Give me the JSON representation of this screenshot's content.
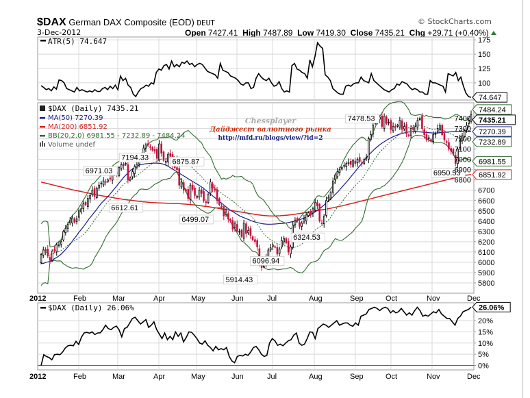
{
  "header": {
    "symbol": "$DAX",
    "name": "German DAX Composite (EOD)",
    "exchange": "DEUT",
    "date": "3-Dec-2012",
    "brand": "© StockCharts.com",
    "open_label": "Open",
    "open": "7427.41",
    "high_label": "High",
    "high": "7487.89",
    "low_label": "Low",
    "low": "7419.30",
    "close_label": "Close",
    "close": "7435.21",
    "chg_label": "Chg",
    "chg": "+29.71 (+0.40%)"
  },
  "watermark": {
    "line1": "Chessplayer",
    "line2": "Дайджест валютного рынка",
    "line3": "http://mfd.ru/blogs/view/?id=2"
  },
  "colors": {
    "ma50": "#1a1a8c",
    "ma200": "#d42020",
    "bb": "#2e6b2e",
    "down_candle": "#c8103c",
    "up_candle": "#000000",
    "grid": "#d8d8d8"
  },
  "chart_data": [
    {
      "type": "line",
      "title": "ATR(5) 74.647",
      "legend": "ATR(5) 74.647",
      "last_value_label": "74.647",
      "ylim": [
        70,
        180
      ],
      "yticks": [
        100,
        125,
        150,
        175
      ],
      "x_month_index": true,
      "series": [
        {
          "name": "ATR(5)",
          "values": [
            95,
            92,
            88,
            90,
            86,
            93,
            89,
            105,
            104,
            100,
            90,
            88,
            86,
            84,
            92,
            86,
            88,
            86,
            84,
            86,
            84,
            88,
            85,
            85,
            90,
            92,
            88,
            94,
            90,
            96,
            88,
            112,
            104,
            108,
            96,
            92,
            80,
            76,
            84,
            90,
            92,
            96,
            94,
            100,
            98,
            118,
            124,
            122,
            130,
            132,
            124,
            138,
            128,
            132,
            128,
            136,
            134,
            138,
            132,
            134,
            128,
            132,
            134,
            132,
            126,
            120,
            118,
            116,
            114,
            108,
            134,
            122,
            120,
            118,
            112,
            110,
            108,
            104,
            98,
            96,
            100,
            100,
            90,
            92,
            108,
            116,
            110,
            106,
            104,
            108,
            100,
            94,
            96,
            102,
            90,
            84,
            86,
            84,
            130,
            134,
            124,
            122,
            118,
            116,
            108,
            140,
            128,
            146,
            170,
            164,
            160,
            114,
            110,
            104,
            90,
            86,
            82,
            80,
            80,
            94,
            96,
            94,
            98,
            100,
            100,
            110,
            104,
            102,
            100,
            116,
            104,
            100,
            96,
            92,
            88,
            86,
            84,
            88,
            90,
            98,
            96,
            102,
            100,
            98,
            92,
            88,
            90,
            88,
            84,
            84,
            80,
            80,
            104,
            100,
            100,
            98,
            96,
            94,
            84,
            116,
            114,
            112,
            118,
            104,
            110,
            94,
            82,
            76,
            74.647
          ]
        }
      ]
    },
    {
      "type": "candlestick",
      "title": "$DAX (Daily) 7435.21",
      "legend": [
        {
          "label": "$DAX (Daily) 7435.21",
          "color": "#000000"
        },
        {
          "label": "MA(50) 7270.39",
          "color": "#1a1a8c"
        },
        {
          "label": "MA(200) 6851.92",
          "color": "#d42020"
        },
        {
          "label": "BB(20,2.0) 6981.55 - 7232.89 - 7484.24",
          "color": "#2e6b2e"
        },
        {
          "label": "Volume undef",
          "color": "#555555"
        }
      ],
      "ylim": [
        5700,
        7550
      ],
      "yticks": [
        5800,
        5900,
        6000,
        6100,
        6200,
        6300,
        6400,
        6500,
        6600,
        6700,
        6800,
        6900,
        7000,
        7100,
        7200,
        7300,
        7400
      ],
      "x_labels": [
        "2012",
        "Feb",
        "Mar",
        "Apr",
        "May",
        "Jun",
        "Jul",
        "Aug",
        "Sep",
        "Oct",
        "Nov",
        "Dec"
      ],
      "last_value_tags": [
        {
          "text": "7484.24",
          "value": 7484.24,
          "color": "#2e6b2e"
        },
        {
          "text": "7435.21",
          "value": 7435.21,
          "color": "#000000",
          "bold": true
        },
        {
          "text": "7270.39",
          "value": 7270.39,
          "color": "#1a1a8c"
        },
        {
          "text": "7232.89",
          "value": 7232.89,
          "color": "#2e6b2e"
        },
        {
          "text": "6981.55",
          "value": 6981.55,
          "color": "#2e6b2e"
        },
        {
          "text": "6851.92",
          "value": 6851.92,
          "color": "#d42020"
        }
      ],
      "annotations": [
        {
          "text": "6971.03",
          "month": 1.55,
          "value": 6971.03
        },
        {
          "text": "7194.33",
          "month": 2.45,
          "value": 7194.33
        },
        {
          "text": "6612.61",
          "month": 2.2,
          "value": 6612.61
        },
        {
          "text": "6875.87",
          "month": 3.75,
          "value": 6875.87
        },
        {
          "text": "6499.07",
          "month": 4.0,
          "value": 6499.07
        },
        {
          "text": "5914.43",
          "month": 5.1,
          "value": 5914.43
        },
        {
          "text": "6096.94",
          "month": 5.85,
          "value": 6096.94
        },
        {
          "text": "6324.53",
          "month": 6.85,
          "value": 6324.53
        },
        {
          "text": "7478.53",
          "month": 8.2,
          "value": 7478.53
        },
        {
          "text": "6950.53",
          "month": 10.4,
          "value": 6950.53
        }
      ],
      "close": [
        6075,
        6120,
        6110,
        6060,
        6020,
        6110,
        6120,
        6170,
        6170,
        6200,
        6300,
        6330,
        6370,
        6400,
        6430,
        6390,
        6420,
        6500,
        6520,
        6570,
        6560,
        6620,
        6650,
        6700,
        6640,
        6720,
        6750,
        6770,
        6790,
        6780,
        6800,
        6810,
        6880,
        6860,
        6860,
        6920,
        6950,
        6940,
        6960,
        6800,
        6820,
        6880,
        6930,
        6950,
        6980,
        7050,
        7110,
        7140,
        7140,
        7120,
        7090,
        7080,
        7010,
        7150,
        7060,
        6990,
        6980,
        7050,
        7030,
        6940,
        6920,
        6900,
        6750,
        6780,
        6700,
        6690,
        6620,
        6750,
        6710,
        6650,
        6640,
        6700,
        6670,
        6600,
        6580,
        6660,
        6780,
        6720,
        6700,
        6600,
        6560,
        6540,
        6450,
        6490,
        6420,
        6400,
        6320,
        6380,
        6300,
        6300,
        6250,
        6380,
        6280,
        6310,
        6260,
        6220,
        6200,
        6150,
        5980,
        5950,
        5960,
        6050,
        6120,
        6140,
        6170,
        6150,
        6080,
        6130,
        6210,
        6230,
        6190,
        6100,
        6150,
        6360,
        6410,
        6400,
        6350,
        6380,
        6420,
        6460,
        6480,
        6460,
        6520,
        6580,
        6550,
        6400,
        6380,
        6450,
        6600,
        6630,
        6680,
        6790,
        6850,
        6880,
        6900,
        6920,
        6940,
        6960,
        6970,
        6950,
        6990,
        6960,
        7000,
        6980,
        6960,
        7000,
        7020,
        7200,
        7240,
        7330,
        7380,
        7390,
        7410,
        7320,
        7420,
        7350,
        7360,
        7290,
        7320,
        7310,
        7330,
        7380,
        7290,
        7320,
        7250,
        7230,
        7300,
        7290,
        7320,
        7380,
        7400,
        7300,
        7240,
        7190,
        7210,
        7180,
        7240,
        7250,
        7300,
        7330,
        7240,
        7190,
        7170,
        7100,
        7080,
        7050,
        6960,
        7100,
        7200,
        7230,
        7280,
        7330,
        7380,
        7435.21
      ],
      "ma50": [
        5990,
        5990,
        6000,
        6005,
        6015,
        6030,
        6045,
        6060,
        6080,
        6105,
        6130,
        6160,
        6190,
        6225,
        6255,
        6290,
        6320,
        6350,
        6385,
        6420,
        6450,
        6480,
        6510,
        6545,
        6575,
        6600,
        6625,
        6650,
        6680,
        6710,
        6740,
        6770,
        6800,
        6830,
        6855,
        6880,
        6900,
        6915,
        6930,
        6945,
        6950,
        6955,
        6958,
        6960,
        6962,
        6963,
        6964,
        6962,
        6958,
        6950,
        6940,
        6925,
        6910,
        6895,
        6880,
        6865,
        6850,
        6835,
        6820,
        6805,
        6790,
        6775,
        6760,
        6745,
        6730,
        6710,
        6690,
        6670,
        6650,
        6630,
        6610,
        6590,
        6570,
        6550,
        6530,
        6510,
        6495,
        6480,
        6465,
        6450,
        6440,
        6430,
        6420,
        6410,
        6400,
        6392,
        6386,
        6380,
        6375,
        6372,
        6370,
        6370,
        6371,
        6372,
        6374,
        6376,
        6378,
        6380,
        6385,
        6390,
        6395,
        6400,
        6408,
        6415,
        6425,
        6435,
        6448,
        6460,
        6475,
        6490,
        6508,
        6525,
        6545,
        6568,
        6590,
        6612,
        6635,
        6660,
        6685,
        6712,
        6740,
        6768,
        6795,
        6825,
        6855,
        6885,
        6915,
        6945,
        6975,
        7005,
        7035,
        7060,
        7085,
        7108,
        7128,
        7148,
        7165,
        7180,
        7195,
        7208,
        7220,
        7230,
        7240,
        7248,
        7255,
        7260,
        7265,
        7268,
        7270,
        7270,
        7268,
        7266,
        7264,
        7262,
        7260,
        7258,
        7256,
        7256,
        7258,
        7260,
        7262,
        7264,
        7266,
        7268,
        7270,
        7270,
        7270,
        7270,
        7270,
        7270,
        7270,
        7270.39
      ],
      "ma200": [
        6780,
        6774,
        6768,
        6762,
        6756,
        6750,
        6744,
        6738,
        6732,
        6726,
        6720,
        6714,
        6708,
        6703,
        6698,
        6693,
        6688,
        6683,
        6678,
        6673,
        6668,
        6663,
        6658,
        6653,
        6648,
        6644,
        6640,
        6636,
        6632,
        6628,
        6624,
        6620,
        6616,
        6612,
        6609,
        6606,
        6603,
        6600,
        6597,
        6594,
        6591,
        6588,
        6586,
        6584,
        6582,
        6580,
        6579,
        6578,
        6577,
        6576,
        6575,
        6574,
        6573,
        6572,
        6571,
        6570,
        6569,
        6567,
        6565,
        6563,
        6561,
        6559,
        6556,
        6553,
        6550,
        6547,
        6544,
        6541,
        6538,
        6534,
        6530,
        6526,
        6522,
        6518,
        6514,
        6510,
        6506,
        6502,
        6498,
        6494,
        6490,
        6486,
        6482,
        6478,
        6474,
        6470,
        6466,
        6462,
        6459,
        6456,
        6454,
        6452,
        6450,
        6450,
        6450,
        6451,
        6452,
        6454,
        6456,
        6458,
        6460,
        6463,
        6466,
        6470,
        6474,
        6478,
        6482,
        6486,
        6490,
        6494,
        6498,
        6502,
        6506,
        6510,
        6514,
        6518,
        6523,
        6528,
        6533,
        6538,
        6543,
        6548,
        6554,
        6560,
        6566,
        6572,
        6578,
        6584,
        6590,
        6596,
        6602,
        6608,
        6614,
        6620,
        6626,
        6632,
        6638,
        6644,
        6650,
        6656,
        6662,
        6668,
        6674,
        6680,
        6686,
        6692,
        6698,
        6704,
        6710,
        6716,
        6722,
        6728,
        6734,
        6740,
        6746,
        6752,
        6758,
        6764,
        6770,
        6776,
        6782,
        6788,
        6794,
        6800,
        6806,
        6812,
        6818,
        6824,
        6830,
        6836,
        6842,
        6846,
        6849,
        6851.92
      ]
    },
    {
      "type": "line",
      "title": "$DAX (Daily) 26.06%",
      "legend": "$DAX (Daily) 26.06%",
      "last_value_label": "26.06%",
      "ylim": [
        -2,
        28
      ],
      "yticks": [
        0,
        5,
        10,
        15,
        20
      ],
      "ytick_labels": [
        "0%",
        "5%",
        "10%",
        "15%",
        "20%"
      ],
      "x_labels": [
        "2012",
        "Feb",
        "Mar",
        "Apr",
        "May",
        "Jun",
        "Jul",
        "Aug",
        "Sep",
        "Oct",
        "Nov",
        "Dec"
      ],
      "series": [
        {
          "name": "$DAX % change",
          "values": [
            0,
            4.8,
            4,
            3.5,
            2.5,
            4.8,
            5,
            4.8,
            6,
            7.8,
            8.8,
            9,
            8.8,
            10.8,
            9.4,
            12.6,
            14.5,
            14.8,
            14.4,
            15,
            13.8,
            14.5,
            14.6,
            16,
            18,
            16.5,
            16,
            17,
            17.6,
            16,
            12.8,
            16.5,
            17,
            19,
            21,
            21.5,
            20,
            18.5,
            19.5,
            20.5,
            17,
            18,
            19.5,
            16,
            14,
            12,
            14.5,
            11.5,
            13,
            11.5,
            15,
            13,
            14.5,
            10.5,
            12.5,
            15,
            14.8,
            13.5,
            12,
            10,
            9.5,
            11,
            9,
            8,
            6.5,
            8.5,
            7,
            7.5,
            7,
            8,
            4,
            2,
            1.2,
            4,
            4.5,
            4.2,
            5,
            4.5,
            6,
            8,
            8.5,
            7,
            5,
            4,
            4.5,
            10,
            12,
            11,
            9,
            9.5,
            8.8,
            10,
            11,
            11.5,
            13.5,
            14.5,
            10,
            9,
            9.5,
            12,
            15,
            14.8,
            12,
            16.5,
            17.5,
            18.5,
            18,
            17,
            18,
            19,
            20,
            18,
            18.5,
            19,
            19,
            18,
            17.5,
            19,
            18,
            22,
            22.5,
            23,
            25,
            25.5,
            26,
            25.5,
            24.5,
            25.5,
            26,
            25.5,
            23.5,
            24.5,
            23.5,
            24,
            25.5,
            24,
            22.5,
            23.5,
            22.5,
            24.5,
            26,
            24.5,
            22,
            22.5,
            22,
            23,
            24,
            23.5,
            25,
            23,
            22,
            21,
            21,
            19.5,
            18,
            21,
            22,
            24,
            24.5,
            25,
            26.06
          ]
        }
      ]
    }
  ]
}
